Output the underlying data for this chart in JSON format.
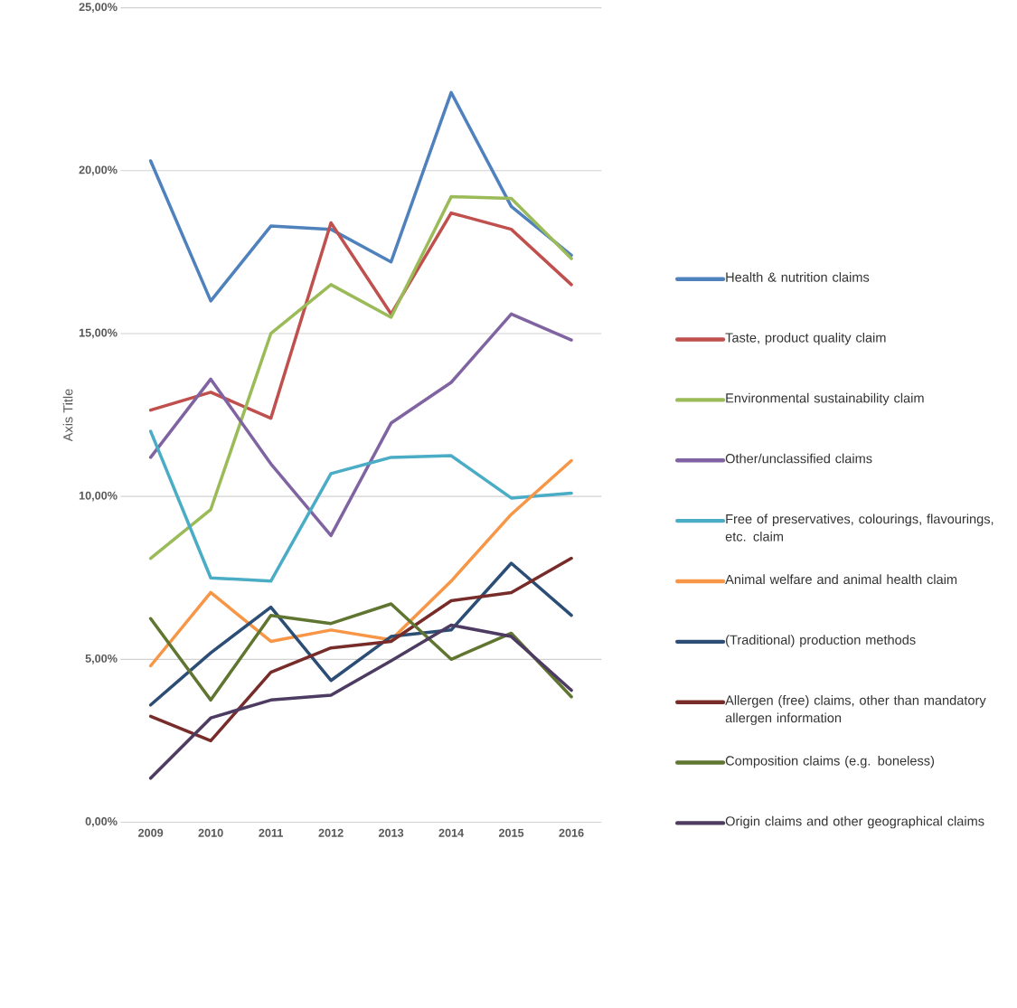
{
  "chart_data": {
    "type": "line",
    "ylabel": "Axis Title",
    "categories": [
      "2009",
      "2010",
      "2011",
      "2012",
      "2013",
      "2014",
      "2015",
      "2016"
    ],
    "ylim": [
      0,
      25
    ],
    "yticks": [
      {
        "value": 0,
        "label": "0,00%"
      },
      {
        "value": 5,
        "label": "5,00%"
      },
      {
        "value": 10,
        "label": "10,00%"
      },
      {
        "value": 15,
        "label": "15,00%"
      },
      {
        "value": 20,
        "label": "20,00%"
      },
      {
        "value": 25,
        "label": "25,00%"
      }
    ],
    "grid": "y",
    "legend": "right",
    "marker": "none",
    "line_style": "solid",
    "series": [
      {
        "name": "Health & nutrition claims",
        "color": "#4f81bd",
        "values": [
          20.3,
          16.0,
          18.3,
          18.2,
          17.2,
          22.4,
          18.9,
          17.4
        ]
      },
      {
        "name": "Taste, product quality claim",
        "color": "#c0504d",
        "values": [
          12.65,
          13.2,
          12.4,
          18.4,
          15.6,
          18.7,
          18.2,
          16.5
        ]
      },
      {
        "name": "Environmental sustainability claim",
        "color": "#9bbb59",
        "values": [
          8.1,
          9.6,
          15.0,
          16.5,
          15.5,
          19.2,
          19.15,
          17.3
        ]
      },
      {
        "name": "Other/unclassified claims",
        "color": "#8064a2",
        "values": [
          11.2,
          13.6,
          11.0,
          8.8,
          12.25,
          13.5,
          15.6,
          14.8
        ]
      },
      {
        "name": "Free of preservatives, colourings, flavourings, etc. claim",
        "color": "#4bacc6",
        "values": [
          12.0,
          7.5,
          7.4,
          10.7,
          11.2,
          11.25,
          9.95,
          10.1
        ]
      },
      {
        "name": "Animal welfare and animal health claim",
        "color": "#f79646",
        "values": [
          4.8,
          7.05,
          5.55,
          5.9,
          5.6,
          7.4,
          9.45,
          11.1
        ]
      },
      {
        "name": "(Traditional) production methods",
        "color": "#2c4d75",
        "values": [
          3.6,
          5.2,
          6.6,
          4.35,
          5.7,
          5.9,
          7.95,
          6.35
        ]
      },
      {
        "name": "Allergen (free) claims, other than mandatory allergen information",
        "color": "#772c2a",
        "values": [
          3.25,
          2.5,
          4.6,
          5.35,
          5.55,
          6.8,
          7.05,
          8.1
        ]
      },
      {
        "name": "Composition claims (e.g. boneless)",
        "color": "#5f7530",
        "values": [
          6.25,
          3.75,
          6.35,
          6.1,
          6.7,
          5.0,
          5.8,
          3.85
        ]
      },
      {
        "name": "Origin claims and other geographical claims",
        "color": "#4d3b62",
        "values": [
          1.35,
          3.2,
          3.75,
          3.9,
          4.95,
          6.05,
          5.7,
          4.05
        ]
      }
    ]
  }
}
